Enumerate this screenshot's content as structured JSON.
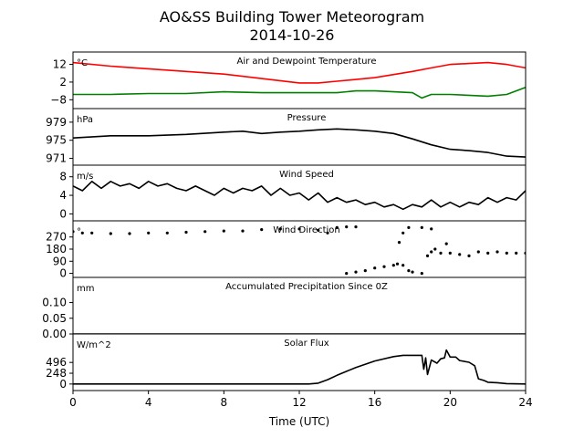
{
  "figure": {
    "title_line1": "AO&SS Building Tower Meteorogram",
    "title_line2": "2014-10-26",
    "xlabel": "Time (UTC)"
  },
  "chart_data": [
    {
      "type": "line",
      "title": "Air and Dewpoint Temperature",
      "unit": "°C",
      "xlim": [
        0,
        24
      ],
      "ylim": [
        -13,
        19
      ],
      "yticks": [
        12,
        2,
        -8
      ],
      "series": [
        {
          "color": "#ff0000",
          "x": [
            0,
            2,
            4,
            6,
            8,
            10,
            12,
            13,
            14,
            16,
            18,
            19,
            20,
            21,
            22,
            23,
            24
          ],
          "y": [
            13,
            11,
            9.5,
            8,
            6.5,
            4,
            1.5,
            1.5,
            2.5,
            4.5,
            8,
            10,
            12,
            12.5,
            13,
            12,
            10
          ]
        },
        {
          "color": "#008000",
          "x": [
            0,
            2,
            4,
            6,
            8,
            10,
            12,
            14,
            15,
            16,
            17,
            18,
            18.5,
            19,
            20,
            22,
            23,
            24
          ],
          "y": [
            -5,
            -5,
            -4.5,
            -4.5,
            -3.5,
            -4,
            -4,
            -4,
            -3,
            -3,
            -3.5,
            -4,
            -7,
            -5,
            -5,
            -6,
            -5,
            -1
          ]
        }
      ]
    },
    {
      "type": "line",
      "title": "Pressure",
      "unit": "hPa",
      "xlim": [
        0,
        24
      ],
      "ylim": [
        969.5,
        982
      ],
      "yticks": [
        979,
        975,
        971
      ],
      "series": [
        {
          "color": "#000000",
          "x": [
            0,
            2,
            4,
            6,
            8,
            9,
            10,
            11,
            12,
            13,
            14,
            15,
            16,
            17,
            18,
            19,
            20,
            21,
            22,
            23,
            24
          ],
          "y": [
            975.5,
            976,
            976,
            976.3,
            976.8,
            977,
            976.5,
            976.8,
            977,
            977.3,
            977.5,
            977.3,
            977,
            976.5,
            975.3,
            974,
            973,
            972.7,
            972.3,
            971.5,
            971.3
          ]
        }
      ]
    },
    {
      "type": "line",
      "title": "Wind Speed",
      "unit": "m/s",
      "xlim": [
        0,
        24
      ],
      "ylim": [
        -1.5,
        10.5
      ],
      "yticks": [
        8,
        4,
        0
      ],
      "series": [
        {
          "color": "#000000",
          "x": [
            0,
            0.5,
            1,
            1.5,
            2,
            2.5,
            3,
            3.5,
            4,
            4.5,
            5,
            5.5,
            6,
            6.5,
            7,
            7.5,
            8,
            8.5,
            9,
            9.5,
            10,
            10.5,
            11,
            11.5,
            12,
            12.5,
            13,
            13.5,
            14,
            14.5,
            15,
            15.5,
            16,
            16.5,
            17,
            17.5,
            18,
            18.5,
            19,
            19.5,
            20,
            20.5,
            21,
            21.5,
            22,
            22.5,
            23,
            23.5,
            24
          ],
          "y": [
            6,
            5,
            7,
            5.5,
            7,
            6,
            6.5,
            5.5,
            7,
            6,
            6.5,
            5.5,
            5,
            6,
            5,
            4,
            5.5,
            4.5,
            5.5,
            5,
            6,
            4,
            5.5,
            4,
            4.5,
            3,
            4.5,
            2.5,
            3.5,
            2.5,
            3,
            2,
            2.5,
            1.5,
            2,
            1,
            2,
            1.5,
            3,
            1.5,
            2.5,
            1.5,
            2.5,
            2,
            3.5,
            2.5,
            3.5,
            3,
            5
          ]
        }
      ]
    },
    {
      "type": "scatter",
      "title": "Wind Direction",
      "unit": "°",
      "xlim": [
        0,
        24
      ],
      "ylim": [
        -30,
        390
      ],
      "yticks": [
        270,
        180,
        90,
        0
      ],
      "series": [
        {
          "color": "#000000",
          "x": [
            0,
            0.5,
            1,
            2,
            3,
            4,
            5,
            6,
            7,
            8,
            9,
            10,
            11,
            12,
            13,
            13.5,
            14,
            14.5,
            15,
            14.5,
            15,
            15.5,
            16,
            16.5,
            17,
            17.2,
            17.5,
            17.8,
            18,
            18.5,
            17.3,
            17.5,
            17.8,
            18.5,
            19,
            19.2,
            19.5,
            19.8,
            18.8,
            19,
            20,
            20.5,
            21,
            21.5,
            22,
            22.5,
            23,
            23.5,
            24
          ],
          "y": [
            310,
            300,
            300,
            295,
            295,
            300,
            300,
            305,
            310,
            315,
            315,
            325,
            330,
            330,
            320,
            300,
            340,
            345,
            345,
            0,
            10,
            20,
            40,
            50,
            60,
            70,
            60,
            20,
            10,
            0,
            230,
            300,
            340,
            340,
            330,
            180,
            150,
            220,
            130,
            160,
            150,
            140,
            130,
            160,
            150,
            160,
            150,
            150,
            150
          ]
        }
      ]
    },
    {
      "type": "line",
      "title": "Accumulated Precipitation Since 0Z",
      "unit": "mm",
      "xlim": [
        0,
        24
      ],
      "ylim": [
        0,
        0.18
      ],
      "yticks": [
        0.1,
        0.05,
        0.0
      ],
      "series": [
        {
          "color": "#000000",
          "x": [
            0,
            24
          ],
          "y": [
            0,
            0
          ]
        }
      ]
    },
    {
      "type": "line",
      "title": "Solar Flux",
      "unit": "W/m^2",
      "xlim": [
        0,
        24
      ],
      "ylim": [
        -150,
        1150
      ],
      "yticks": [
        496,
        248,
        0
      ],
      "series": [
        {
          "color": "#000000",
          "x": [
            0,
            12.5,
            13,
            13.5,
            14,
            15,
            16,
            17,
            17.5,
            18,
            18.5,
            18.6,
            18.7,
            18.8,
            19,
            19.3,
            19.5,
            19.7,
            19.8,
            20,
            20.3,
            20.5,
            21,
            21.3,
            21.5,
            21.8,
            22,
            22.5,
            23,
            24
          ],
          "y": [
            0,
            0,
            20,
            100,
            200,
            380,
            530,
            630,
            660,
            660,
            660,
            340,
            600,
            220,
            550,
            480,
            580,
            600,
            780,
            620,
            620,
            540,
            500,
            420,
            120,
            80,
            40,
            30,
            10,
            0
          ]
        }
      ]
    }
  ],
  "xaxis": {
    "ticks": [
      0,
      4,
      8,
      12,
      16,
      20,
      24
    ],
    "tick_labels": [
      "0",
      "4",
      "8",
      "12",
      "16",
      "20",
      "24"
    ]
  }
}
